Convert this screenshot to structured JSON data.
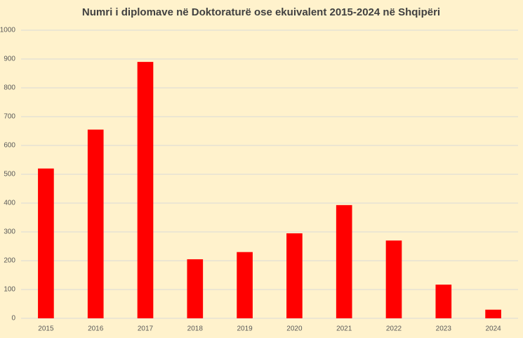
{
  "chart_data": {
    "type": "bar",
    "title": "Numri i diplomave në Doktoraturë ose ekuivalent 2015-2024 në Shqipëri",
    "categories": [
      "2015",
      "2016",
      "2017",
      "2018",
      "2019",
      "2020",
      "2021",
      "2022",
      "2023",
      "2024"
    ],
    "values": [
      520,
      655,
      890,
      205,
      230,
      295,
      393,
      270,
      117,
      30
    ],
    "color": "#ff0000",
    "ylim": [
      0,
      1000
    ],
    "yticks": [
      0,
      100,
      200,
      300,
      400,
      500,
      600,
      700,
      800,
      900,
      1000
    ],
    "grid": true
  }
}
